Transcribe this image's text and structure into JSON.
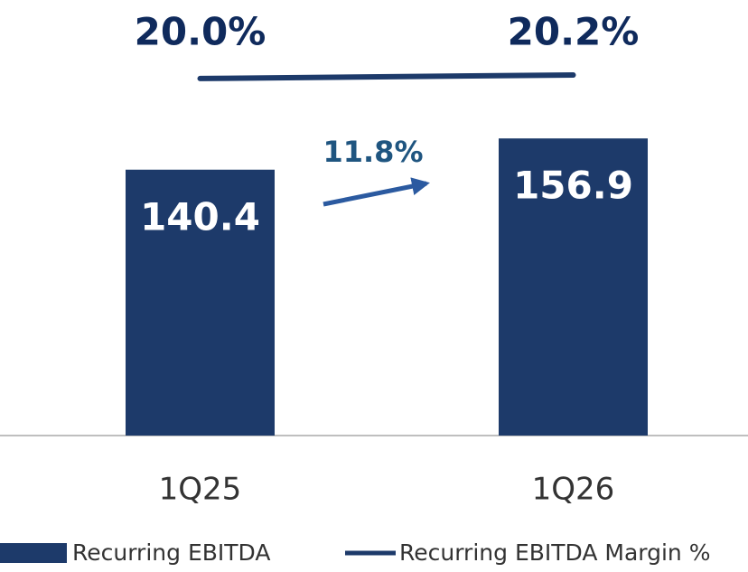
{
  "chart_data": {
    "type": "bar",
    "categories": [
      "1Q25",
      "1Q26"
    ],
    "series": [
      {
        "name": "Recurring EBITDA",
        "color": "#1d3a6a",
        "values": [
          140.4,
          156.9
        ]
      },
      {
        "name": "Recurring EBITDA Margin %",
        "color": "#1d3a6a",
        "type": "line",
        "axis": "y2",
        "values": [
          20.0,
          20.2
        ],
        "value_labels": [
          "20.0%",
          "20.2%"
        ]
      }
    ],
    "ylim": [
      0,
      230
    ],
    "y2lim": [
      0,
      24.4
    ],
    "annotations": [
      {
        "text": "11.8%",
        "color": "#1f5580",
        "arrow_color": "#2b5aa0"
      }
    ],
    "legend": "bottom"
  }
}
